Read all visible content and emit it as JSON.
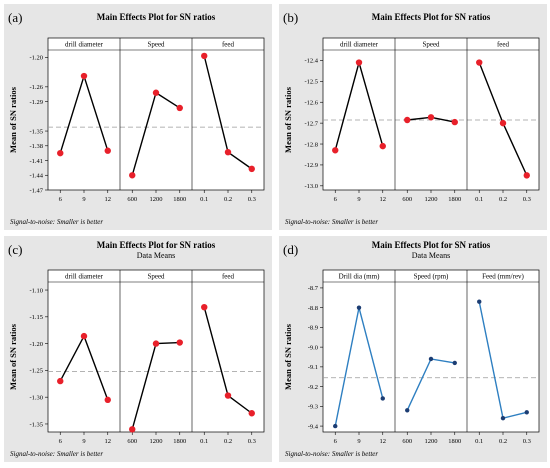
{
  "chart_data": [
    {
      "type": "line",
      "panel_label": "(a)",
      "title": "Main Effects Plot for SN ratios",
      "subtitle": "",
      "ylabel": "Mean of SN ratios",
      "yticks": [
        "-1.20",
        "-1.26",
        "-1.29",
        "-1.35",
        "-1.38",
        "-1.41",
        "-1.44",
        "-1.47"
      ],
      "ylim": [
        -1.47,
        -1.185
      ],
      "reference_line": -1.342,
      "footnote": "Signal-to-noise: Smaller is better",
      "colors": {
        "line": "#000000",
        "marker": "#e8202a",
        "background": "#e6e6e6"
      },
      "factors": [
        {
          "name": "drill diameter",
          "levels": [
            "6",
            "9",
            "12"
          ],
          "values": [
            -1.395,
            -1.238,
            -1.39
          ]
        },
        {
          "name": "Speed",
          "levels": [
            "600",
            "1200",
            "1800"
          ],
          "values": [
            -1.44,
            -1.272,
            -1.303
          ]
        },
        {
          "name": "feed",
          "levels": [
            "0.1",
            "0.2",
            "0.3"
          ],
          "values": [
            -1.197,
            -1.393,
            -1.427
          ]
        }
      ]
    },
    {
      "type": "line",
      "panel_label": "(b)",
      "title": "Main Effects Plot for SN ratios",
      "subtitle": "",
      "ylabel": "Mean of SN ratios",
      "yticks": [
        "-12.4",
        "-12.5",
        "-12.6",
        "-12.7",
        "-12.8",
        "-12.9",
        "-13.0"
      ],
      "ylim": [
        -13.02,
        -12.35
      ],
      "reference_line": -12.685,
      "footnote": "Signal-to-noise: Smaller is better",
      "colors": {
        "line": "#000000",
        "marker": "#e8202a",
        "background": "#e6e6e6"
      },
      "factors": [
        {
          "name": "drill diameter",
          "levels": [
            "6",
            "9",
            "12"
          ],
          "values": [
            -12.83,
            -12.41,
            -12.81
          ]
        },
        {
          "name": "Speed",
          "levels": [
            "600",
            "1200",
            "1800"
          ],
          "values": [
            -12.685,
            -12.672,
            -12.695
          ]
        },
        {
          "name": "feed",
          "levels": [
            "0.1",
            "0.2",
            "0.3"
          ],
          "values": [
            -12.41,
            -12.7,
            -12.95
          ]
        }
      ]
    },
    {
      "type": "line",
      "panel_label": "(c)",
      "title": "Main Effects Plot for SN ratios",
      "subtitle": "Data Means",
      "ylabel": "Mean of SN ratios",
      "yticks": [
        "-1.10",
        "-1.15",
        "-1.20",
        "-1.25",
        "-1.30",
        "-1.35"
      ],
      "ylim": [
        -1.365,
        -1.085
      ],
      "reference_line": -1.252,
      "footnote": "Signal-to-noise: Smaller is better",
      "colors": {
        "line": "#000000",
        "marker": "#e8202a",
        "background": "#e6e6e6"
      },
      "factors": [
        {
          "name": "drill diameter",
          "levels": [
            "6",
            "9",
            "12"
          ],
          "values": [
            -1.27,
            -1.186,
            -1.305
          ]
        },
        {
          "name": "Speed",
          "levels": [
            "600",
            "1200",
            "1800"
          ],
          "values": [
            -1.36,
            -1.2,
            -1.198
          ]
        },
        {
          "name": "feed",
          "levels": [
            "0.1",
            "0.2",
            "0.3"
          ],
          "values": [
            -1.132,
            -1.297,
            -1.33
          ]
        }
      ]
    },
    {
      "type": "line",
      "panel_label": "(d)",
      "title": "Main Effects Plot for SN ratios",
      "subtitle": "Data Means",
      "ylabel": "Mean of SN ratios",
      "yticks": [
        "-8.7",
        "-8.8",
        "-8.9",
        "-9.0",
        "-9.1",
        "-9.2",
        "-9.3",
        "-9.4"
      ],
      "ylim": [
        -9.43,
        -8.67
      ],
      "reference_line": -9.155,
      "footnote": "Signal-to-noise: Smaller is better",
      "colors": {
        "line": "#2e7fc1",
        "marker": "#1c3d73",
        "background": "#e6e6e6"
      },
      "factors": [
        {
          "name": "Drill dia (mm)",
          "levels": [
            "6",
            "9",
            "12"
          ],
          "values": [
            -9.4,
            -8.8,
            -9.26
          ]
        },
        {
          "name": "Speed (rpm)",
          "levels": [
            "600",
            "1200",
            "1800"
          ],
          "values": [
            -9.32,
            -9.06,
            -9.08
          ]
        },
        {
          "name": "Feed (mm/rev)",
          "levels": [
            "0.1",
            "0.2",
            "0.3"
          ],
          "values": [
            -8.77,
            -9.36,
            -9.33
          ]
        }
      ]
    }
  ]
}
